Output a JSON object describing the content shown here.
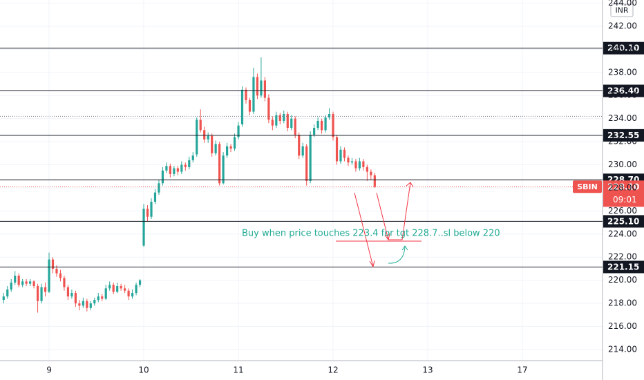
{
  "chart_data": {
    "type": "candlestick",
    "symbol": "SBIN",
    "currency": "INR",
    "up_color": "#26a69a",
    "down_color": "#ef5350",
    "candles": [
      [
        218.3,
        218.9,
        218.0,
        218.6
      ],
      [
        218.6,
        219.5,
        218.4,
        219.2
      ],
      [
        219.2,
        220.1,
        219.0,
        219.8
      ],
      [
        219.8,
        220.8,
        219.6,
        220.4
      ],
      [
        220.4,
        220.6,
        219.4,
        219.6
      ],
      [
        219.6,
        220.1,
        219.4,
        219.9
      ],
      [
        219.9,
        220.1,
        219.5,
        219.7
      ],
      [
        219.7,
        220.1,
        219.5,
        219.9
      ],
      [
        219.9,
        220.0,
        219.3,
        219.5
      ],
      [
        219.5,
        219.7,
        217.2,
        218.2
      ],
      [
        218.2,
        219.7,
        218.0,
        219.4
      ],
      [
        219.4,
        219.8,
        218.6,
        219.0
      ],
      [
        219.0,
        222.4,
        218.9,
        221.8
      ],
      [
        221.8,
        222.0,
        220.6,
        221.0
      ],
      [
        221.0,
        221.3,
        220.3,
        220.6
      ],
      [
        220.6,
        220.9,
        219.9,
        220.2
      ],
      [
        220.2,
        220.4,
        219.1,
        219.4
      ],
      [
        219.4,
        219.6,
        218.3,
        218.6
      ],
      [
        218.6,
        219.2,
        218.4,
        218.9
      ],
      [
        218.9,
        219.1,
        217.7,
        218.0
      ],
      [
        218.0,
        218.3,
        217.4,
        217.8
      ],
      [
        217.8,
        218.5,
        217.6,
        218.2
      ],
      [
        218.2,
        218.4,
        217.3,
        217.6
      ],
      [
        217.6,
        218.2,
        217.4,
        218.0
      ],
      [
        218.0,
        218.5,
        217.8,
        218.3
      ],
      [
        218.3,
        218.9,
        218.1,
        218.6
      ],
      [
        218.6,
        218.8,
        218.2,
        218.4
      ],
      [
        218.4,
        219.6,
        218.3,
        219.3
      ],
      [
        219.3,
        219.9,
        219.1,
        219.6
      ],
      [
        219.6,
        219.8,
        218.8,
        219.0
      ],
      [
        219.0,
        219.8,
        218.9,
        219.5
      ],
      [
        219.5,
        219.7,
        219.1,
        219.3
      ],
      [
        219.3,
        219.6,
        218.9,
        219.1
      ],
      [
        219.1,
        219.3,
        218.3,
        218.6
      ],
      [
        218.6,
        219.2,
        218.4,
        218.9
      ],
      [
        218.9,
        219.8,
        218.7,
        219.6
      ],
      [
        219.6,
        220.1,
        219.4,
        220.0
      ],
      [
        223.0,
        226.6,
        222.9,
        226.2
      ],
      [
        226.2,
        226.5,
        225.1,
        225.5
      ],
      [
        225.5,
        227.1,
        225.3,
        226.8
      ],
      [
        226.8,
        227.9,
        226.6,
        227.6
      ],
      [
        227.6,
        228.7,
        227.4,
        228.4
      ],
      [
        228.4,
        229.8,
        228.2,
        229.5
      ],
      [
        229.5,
        230.2,
        229.3,
        229.9
      ],
      [
        229.9,
        230.1,
        228.9,
        229.2
      ],
      [
        229.2,
        229.9,
        229.0,
        229.7
      ],
      [
        229.7,
        229.9,
        229.1,
        229.4
      ],
      [
        229.4,
        230.3,
        229.2,
        230.0
      ],
      [
        230.0,
        230.2,
        229.5,
        229.8
      ],
      [
        229.8,
        230.7,
        229.6,
        230.4
      ],
      [
        230.4,
        231.1,
        230.2,
        230.8
      ],
      [
        230.9,
        234.1,
        230.7,
        233.9
      ],
      [
        233.9,
        234.8,
        232.8,
        233.0
      ],
      [
        233.0,
        233.3,
        231.9,
        232.2
      ],
      [
        232.2,
        232.8,
        231.9,
        232.5
      ],
      [
        232.5,
        232.7,
        230.7,
        231.0
      ],
      [
        231.0,
        232.1,
        230.8,
        231.8
      ],
      [
        231.8,
        232.0,
        228.2,
        228.4
      ],
      [
        228.4,
        231.1,
        228.3,
        230.8
      ],
      [
        230.8,
        231.9,
        230.6,
        231.6
      ],
      [
        231.6,
        231.8,
        231.1,
        231.4
      ],
      [
        231.4,
        232.7,
        231.2,
        232.4
      ],
      [
        232.4,
        233.7,
        232.2,
        233.4
      ],
      [
        233.5,
        236.8,
        233.3,
        236.5
      ],
      [
        236.5,
        236.7,
        235.3,
        235.6
      ],
      [
        235.6,
        235.8,
        234.3,
        234.6
      ],
      [
        234.6,
        238.4,
        234.4,
        237.6
      ],
      [
        237.6,
        237.9,
        235.7,
        236.0
      ],
      [
        236.0,
        239.3,
        235.8,
        237.3
      ],
      [
        237.3,
        237.6,
        235.5,
        235.8
      ],
      [
        235.8,
        236.1,
        233.6,
        233.9
      ],
      [
        233.9,
        234.2,
        233.0,
        233.4
      ],
      [
        233.4,
        234.6,
        233.2,
        234.3
      ],
      [
        234.3,
        234.5,
        233.5,
        233.8
      ],
      [
        233.8,
        234.7,
        233.6,
        234.4
      ],
      [
        234.4,
        234.6,
        232.9,
        233.2
      ],
      [
        233.2,
        234.3,
        233.0,
        234.0
      ],
      [
        234.0,
        234.2,
        232.3,
        232.6
      ],
      [
        232.6,
        232.8,
        230.5,
        230.8
      ],
      [
        230.8,
        231.9,
        230.6,
        231.6
      ],
      [
        231.6,
        231.8,
        228.2,
        228.6
      ],
      [
        228.6,
        232.9,
        228.4,
        232.6
      ],
      [
        232.6,
        233.5,
        232.4,
        233.2
      ],
      [
        233.2,
        234.1,
        233.0,
        233.8
      ],
      [
        233.8,
        234.0,
        232.7,
        233.0
      ],
      [
        233.0,
        234.3,
        232.8,
        234.1
      ],
      [
        234.1,
        234.9,
        233.9,
        234.4
      ],
      [
        234.4,
        234.6,
        232.1,
        232.4
      ],
      [
        232.4,
        232.6,
        230.0,
        230.3
      ],
      [
        230.3,
        231.6,
        230.1,
        231.3
      ],
      [
        231.3,
        231.5,
        230.3,
        230.6
      ],
      [
        230.6,
        230.8,
        229.9,
        230.2
      ],
      [
        230.2,
        230.6,
        230.0,
        230.3
      ],
      [
        230.3,
        230.5,
        229.4,
        229.7
      ],
      [
        229.7,
        230.6,
        229.5,
        230.3
      ],
      [
        230.3,
        230.5,
        229.5,
        229.8
      ],
      [
        229.8,
        230.0,
        228.6,
        229.4
      ],
      [
        229.4,
        229.6,
        228.7,
        229.1
      ],
      [
        229.1,
        229.3,
        228.0,
        228.1
      ]
    ],
    "xlim": [
      -0.96,
      158.16
    ],
    "xticks": [
      {
        "value": 12,
        "label": "9"
      },
      {
        "value": 37,
        "label": "10"
      },
      {
        "value": 62,
        "label": "11"
      },
      {
        "value": 87,
        "label": "12"
      },
      {
        "value": 112,
        "label": "13"
      },
      {
        "value": 137,
        "label": "17"
      }
    ],
    "ylim": [
      213.04,
      244.27
    ],
    "yticks": [
      {
        "value": 214,
        "label": "214.00"
      },
      {
        "value": 216,
        "label": "216.00"
      },
      {
        "value": 218,
        "label": "218.00"
      },
      {
        "value": 220,
        "label": "220.00"
      },
      {
        "value": 222,
        "label": "222.00"
      },
      {
        "value": 224,
        "label": "224.00"
      },
      {
        "value": 226,
        "label": "226.00"
      },
      {
        "value": 228,
        "label": "228.00"
      },
      {
        "value": 230,
        "label": "230.00"
      },
      {
        "value": 232,
        "label": "232.00"
      },
      {
        "value": 234,
        "label": "234.00"
      },
      {
        "value": 236,
        "label": "236.00"
      },
      {
        "value": 238,
        "label": "238.00"
      },
      {
        "value": 240,
        "label": "240.00"
      },
      {
        "value": 242,
        "label": "242.00"
      },
      {
        "value": 244,
        "label": "244.00"
      }
    ],
    "grid": true,
    "levels": [
      {
        "value": 240.1,
        "label": "240.10"
      },
      {
        "value": 236.4,
        "label": "236.40"
      },
      {
        "value": 232.55,
        "label": "232.55"
      },
      {
        "value": 228.7,
        "label": "228.70"
      },
      {
        "value": 225.1,
        "label": "225.10"
      },
      {
        "value": 221.15,
        "label": "221.15"
      }
    ],
    "dotted_level": 234.2,
    "last_price": {
      "value": 228.1,
      "label": "228.10"
    },
    "countdown": "09:01",
    "annotation": "Buy when price touches 223.4 for tgt 228.7..sl below 220"
  }
}
